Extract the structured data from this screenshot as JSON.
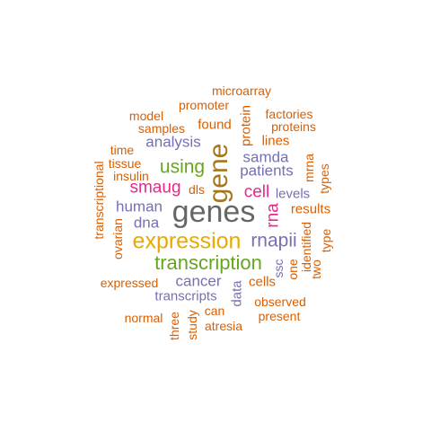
{
  "palette": {
    "orange": "#d95f02",
    "purple": "#7570b3",
    "magenta": "#e7298a",
    "green": "#66a61e",
    "gold": "#e6ab02",
    "brown": "#a6761d",
    "gray": "#666666"
  },
  "words": [
    {
      "text": "microarray",
      "color": "orange"
    },
    {
      "text": "promoter",
      "color": "orange"
    },
    {
      "text": "model",
      "color": "orange"
    },
    {
      "text": "found",
      "color": "orange"
    },
    {
      "text": "protein",
      "color": "orange"
    },
    {
      "text": "factories",
      "color": "orange"
    },
    {
      "text": "proteins",
      "color": "orange"
    },
    {
      "text": "samples",
      "color": "orange"
    },
    {
      "text": "analysis",
      "color": "purple"
    },
    {
      "text": "lines",
      "color": "orange"
    },
    {
      "text": "time",
      "color": "orange"
    },
    {
      "text": "gene",
      "color": "brown"
    },
    {
      "text": "tissue",
      "color": "orange"
    },
    {
      "text": "samda",
      "color": "purple"
    },
    {
      "text": "using",
      "color": "green"
    },
    {
      "text": "patients",
      "color": "purple"
    },
    {
      "text": "mrna",
      "color": "orange"
    },
    {
      "text": "insulin",
      "color": "orange"
    },
    {
      "text": "types",
      "color": "orange"
    },
    {
      "text": "transcriptional",
      "color": "orange"
    },
    {
      "text": "smaug",
      "color": "magenta"
    },
    {
      "text": "dls",
      "color": "orange"
    },
    {
      "text": "cell",
      "color": "magenta"
    },
    {
      "text": "levels",
      "color": "purple"
    },
    {
      "text": "human",
      "color": "purple"
    },
    {
      "text": "genes",
      "color": "gray"
    },
    {
      "text": "rna",
      "color": "magenta"
    },
    {
      "text": "results",
      "color": "orange"
    },
    {
      "text": "dna",
      "color": "purple"
    },
    {
      "text": "ovarian",
      "color": "orange"
    },
    {
      "text": "rnapii",
      "color": "purple"
    },
    {
      "text": "identified",
      "color": "orange"
    },
    {
      "text": "type",
      "color": "orange"
    },
    {
      "text": "expression",
      "color": "gold"
    },
    {
      "text": "one",
      "color": "orange"
    },
    {
      "text": "two",
      "color": "orange"
    },
    {
      "text": "ssc",
      "color": "purple"
    },
    {
      "text": "transcription",
      "color": "green"
    },
    {
      "text": "expressed",
      "color": "orange"
    },
    {
      "text": "cancer",
      "color": "purple"
    },
    {
      "text": "cells",
      "color": "orange"
    },
    {
      "text": "data",
      "color": "purple"
    },
    {
      "text": "transcripts",
      "color": "purple"
    },
    {
      "text": "observed",
      "color": "orange"
    },
    {
      "text": "can",
      "color": "orange"
    },
    {
      "text": "normal",
      "color": "orange"
    },
    {
      "text": "present",
      "color": "orange"
    },
    {
      "text": "three",
      "color": "orange"
    },
    {
      "text": "study",
      "color": "orange"
    },
    {
      "text": "atresia",
      "color": "orange"
    }
  ]
}
